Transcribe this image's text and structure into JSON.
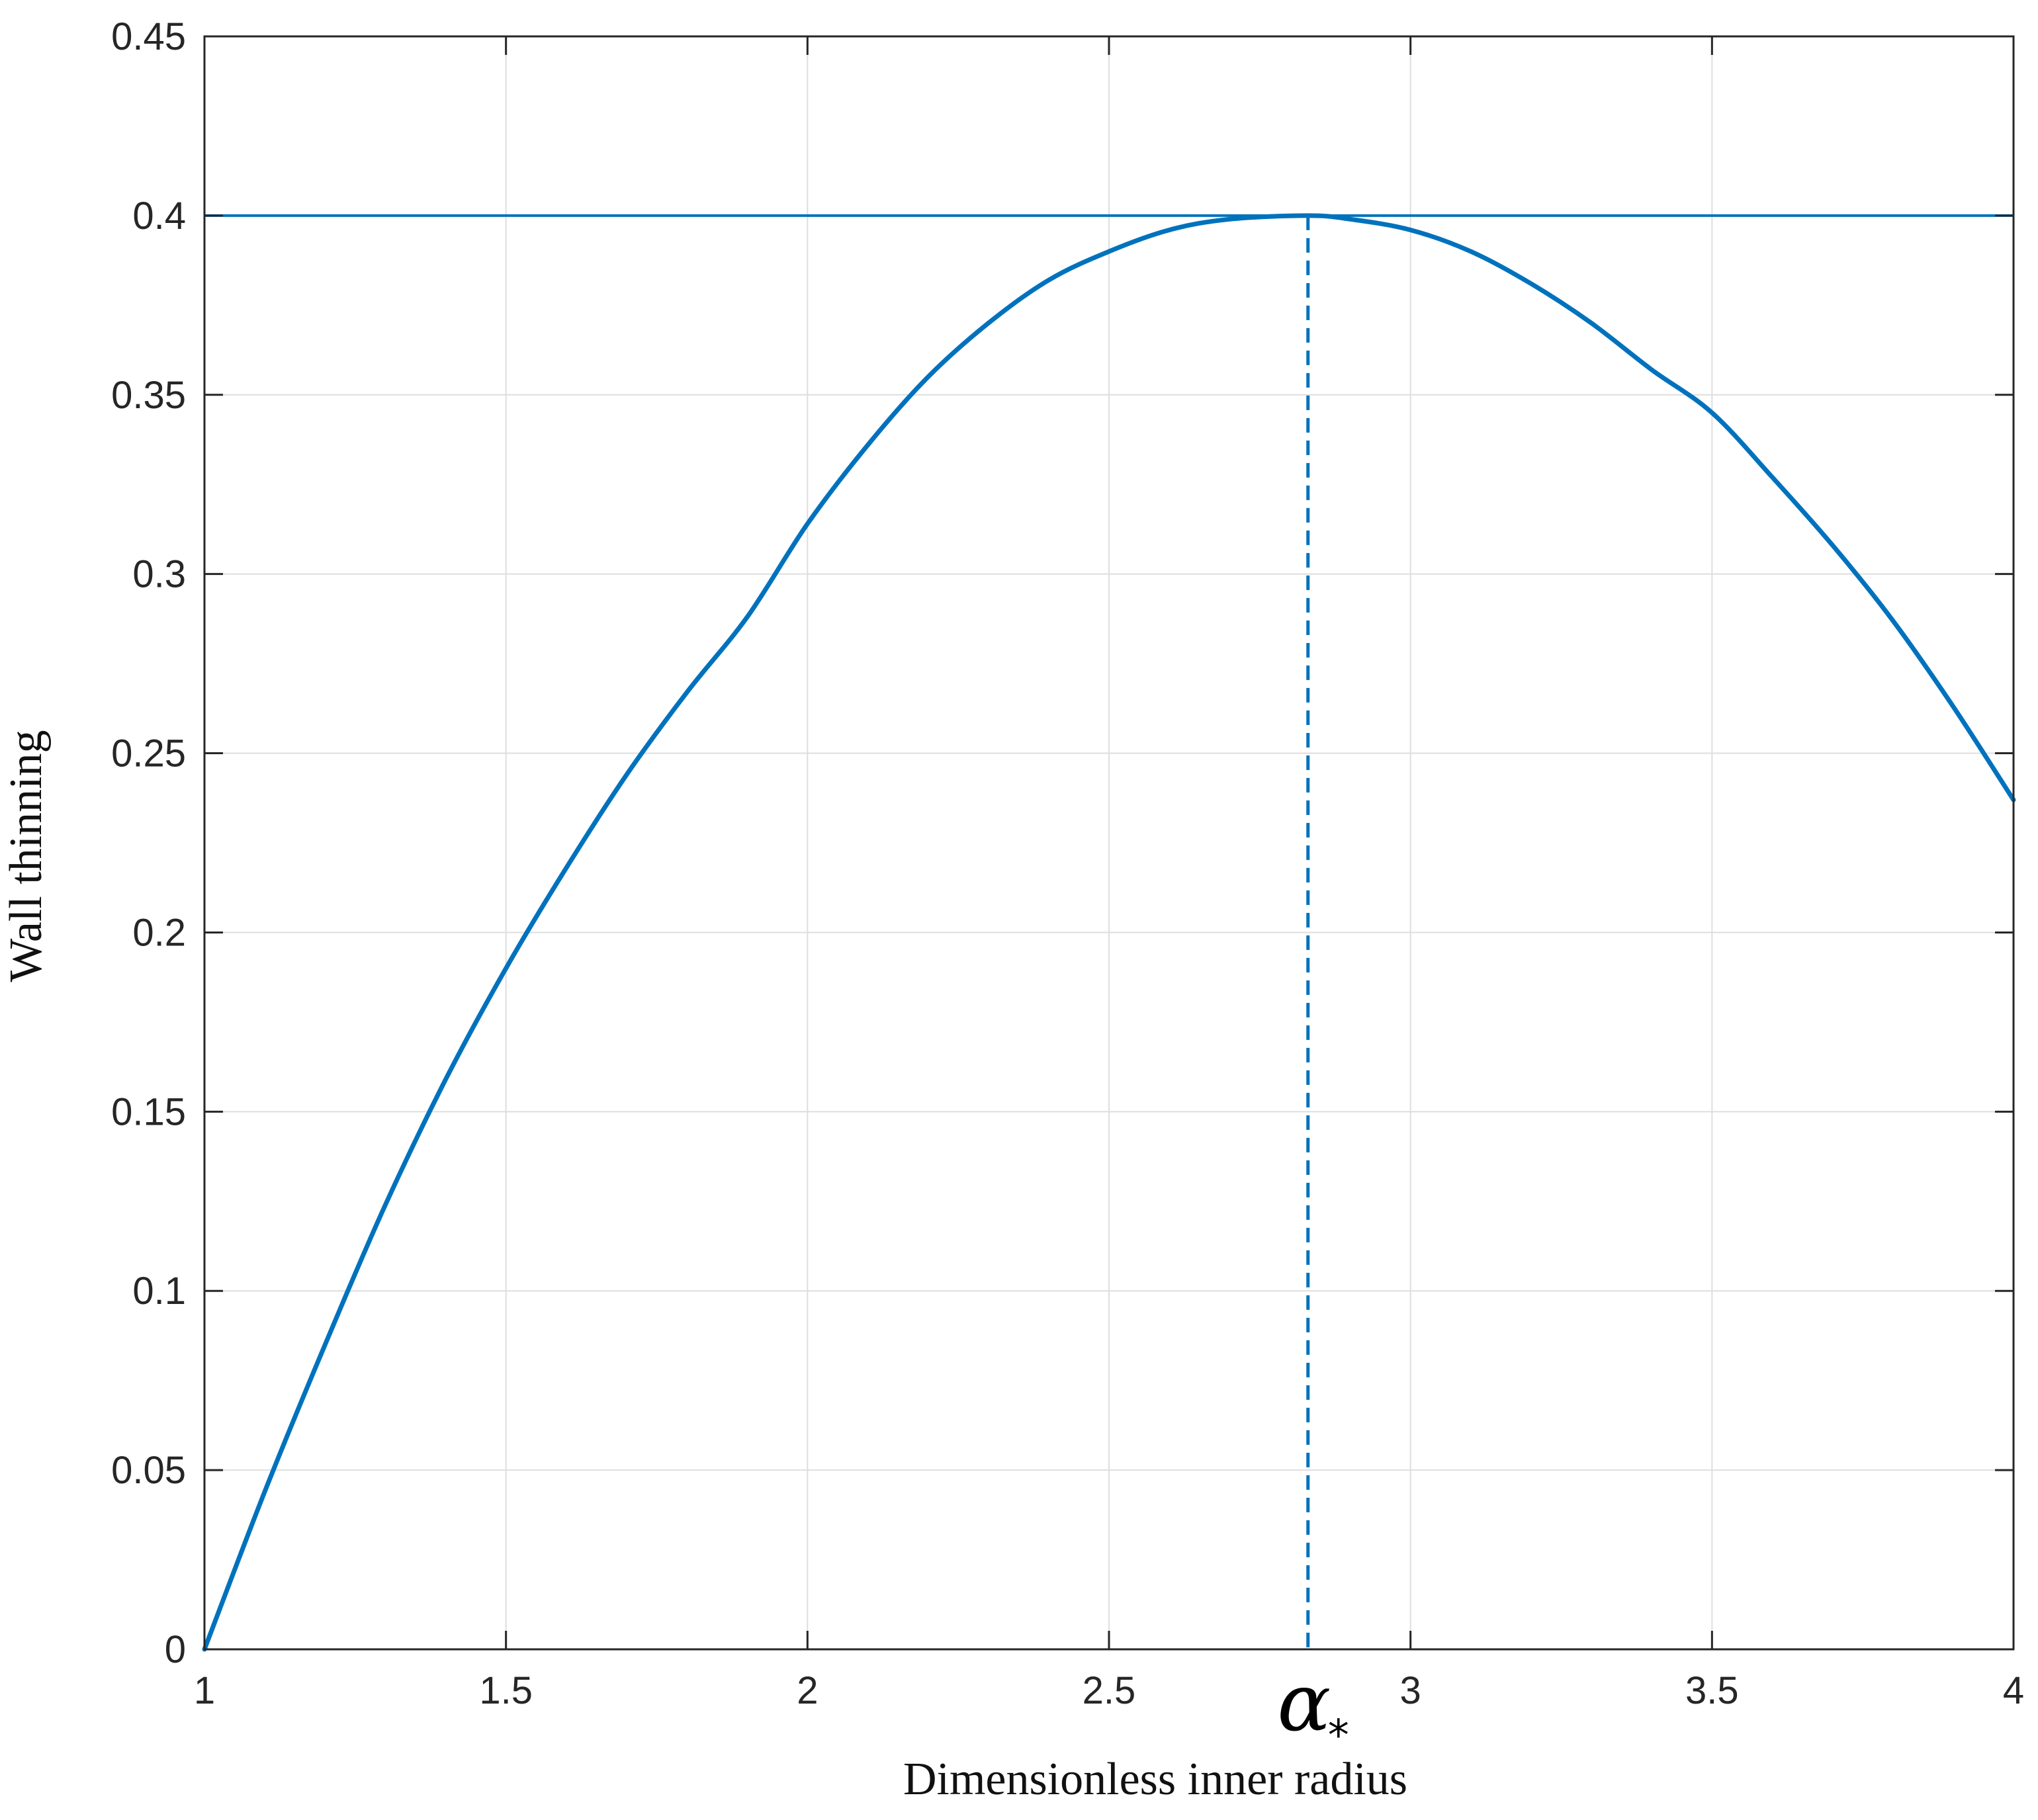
{
  "chart_data": {
    "type": "line",
    "xlabel": "Dimensionless inner radius",
    "ylabel": "Wall thinning",
    "xlim": [
      1,
      4
    ],
    "ylim": [
      0,
      0.45
    ],
    "xticks": [
      "1",
      "1.5",
      "2",
      "2.5",
      "3",
      "3.5",
      "4"
    ],
    "yticks": [
      "0",
      "0.05",
      "0.1",
      "0.15",
      "0.2",
      "0.25",
      "0.3",
      "0.35",
      "0.4",
      "0.45"
    ],
    "grid": true,
    "series": [
      {
        "kind": "curve",
        "color": "#0072BD",
        "x": [
          1.0,
          1.1,
          1.2,
          1.3,
          1.4,
          1.5,
          1.6,
          1.7,
          1.8,
          1.9,
          2.0,
          2.1,
          2.2,
          2.3,
          2.4,
          2.5,
          2.6,
          2.7,
          2.83,
          2.9,
          3.0,
          3.1,
          3.2,
          3.3,
          3.4,
          3.5,
          3.6,
          3.7,
          3.8,
          3.9,
          4.0
        ],
        "y": [
          0.0,
          0.044,
          0.085,
          0.124,
          0.159,
          0.19,
          0.218,
          0.244,
          0.267,
          0.288,
          0.314,
          0.336,
          0.355,
          0.37,
          0.382,
          0.39,
          0.396,
          0.399,
          0.4,
          0.399,
          0.396,
          0.39,
          0.381,
          0.37,
          0.357,
          0.345,
          0.327,
          0.308,
          0.287,
          0.263,
          0.237
        ]
      },
      {
        "kind": "horizontal",
        "color": "#0072BD",
        "y": 0.4
      },
      {
        "kind": "vertical-dashed",
        "color": "#0072BD",
        "x": 2.83,
        "y_top": 0.4
      }
    ],
    "annotations": [
      {
        "text": "α",
        "subscript": "*",
        "x": 2.83
      }
    ]
  }
}
